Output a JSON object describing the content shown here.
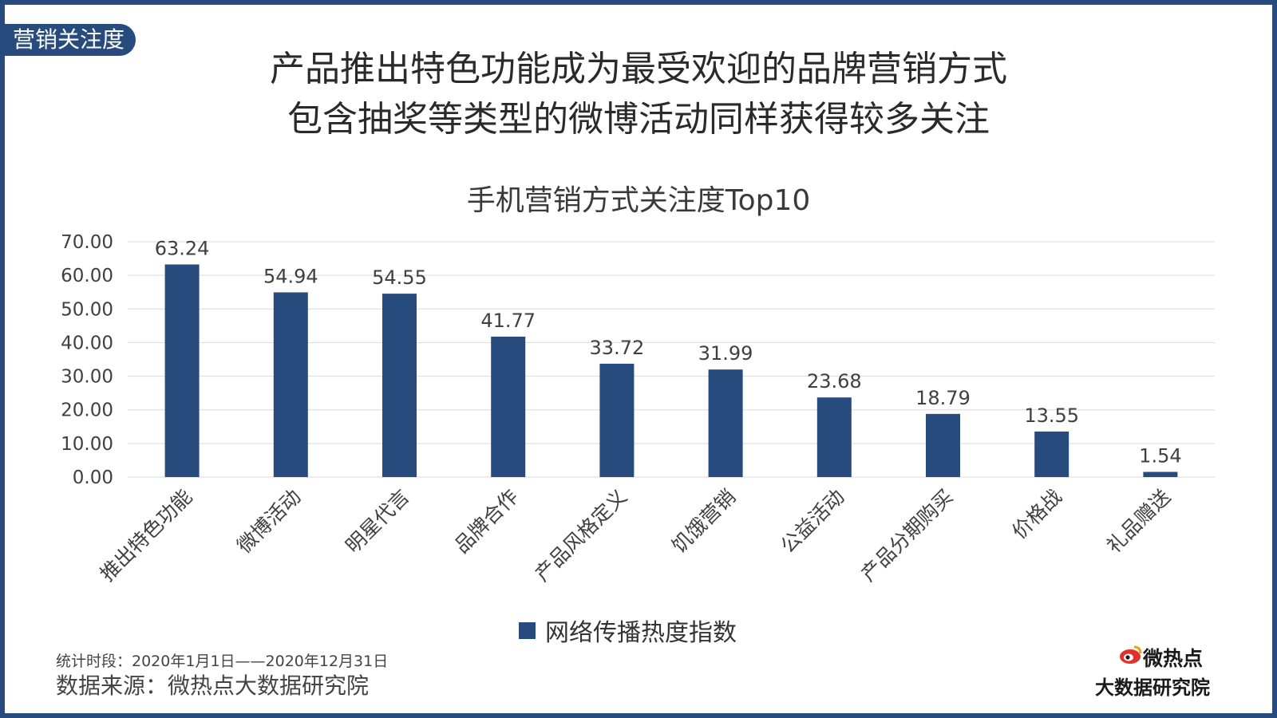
{
  "tag": "营销关注度",
  "headline": {
    "line1": "产品推出特色功能成为最受欢迎的品牌营销方式",
    "line2": "包含抽奖等类型的微博活动同样获得较多关注"
  },
  "footer": {
    "period": "统计时段：2020年1月1日——2020年12月31日",
    "source": "数据来源：微热点大数据研究院"
  },
  "logo": {
    "line1": "微热点",
    "line2": "大数据研究院",
    "icon": "weibo-eye-icon"
  },
  "colors": {
    "accent": "#284b7e",
    "bar": "#284b7e",
    "grid": "#d9d9d9"
  },
  "chart_data": {
    "type": "bar",
    "title": "手机营销方式关注度Top10",
    "categories": [
      "推出特色功能",
      "微博活动",
      "明星代言",
      "品牌合作",
      "产品风格定义",
      "饥饿营销",
      "公益活动",
      "产品分期购买",
      "价格战",
      "礼品赠送"
    ],
    "series": [
      {
        "name": "网络传播热度指数",
        "values": [
          63.24,
          54.94,
          54.55,
          41.77,
          33.72,
          31.99,
          23.68,
          18.79,
          13.55,
          1.54
        ]
      }
    ],
    "value_labels": [
      "63.24",
      "54.94",
      "54.55",
      "41.77",
      "33.72",
      "31.99",
      "23.68",
      "18.79",
      "13.55",
      "1.54"
    ],
    "yticks": [
      "0.00",
      "10.00",
      "20.00",
      "30.00",
      "40.00",
      "50.00",
      "60.00",
      "70.00"
    ],
    "ylim": [
      0,
      70
    ],
    "grid": true,
    "legend_position": "bottom"
  }
}
